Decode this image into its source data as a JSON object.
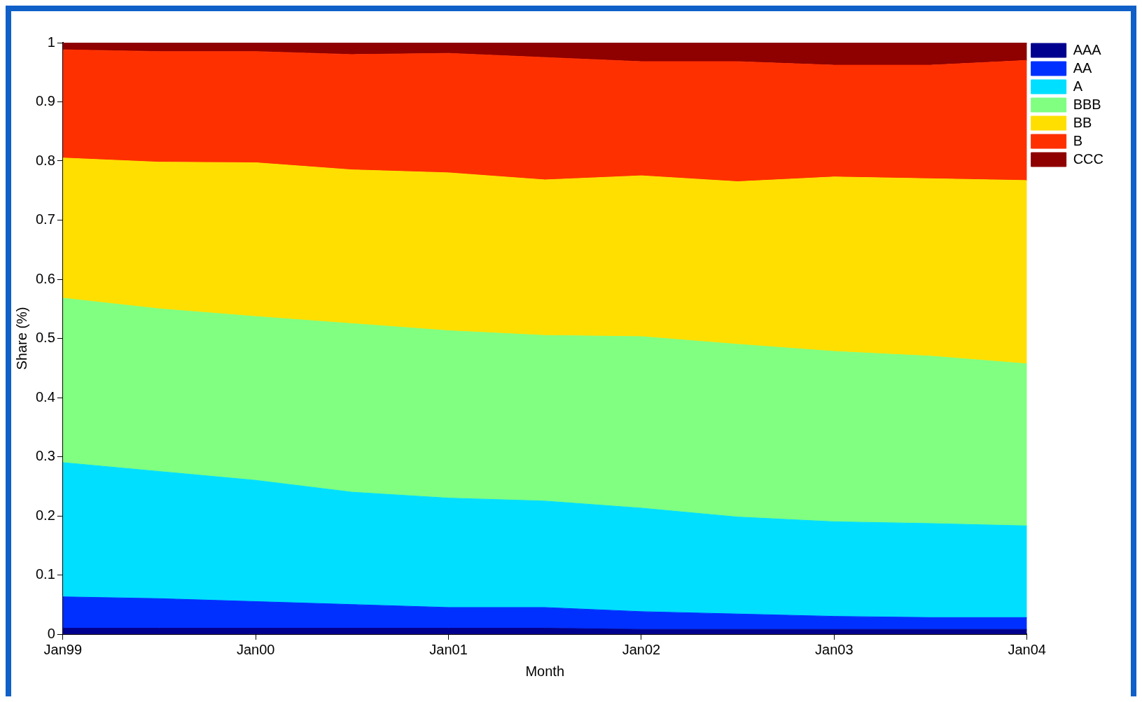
{
  "chart_data": {
    "type": "area",
    "stacked": true,
    "xlabel": "Month",
    "ylabel": "Share (%)",
    "x": [
      "1999-01",
      "1999-07",
      "2000-01",
      "2000-07",
      "2001-01",
      "2001-07",
      "2002-01",
      "2002-07",
      "2003-01",
      "2003-07",
      "2004-01"
    ],
    "xlim": [
      "1999-01",
      "2004-01"
    ],
    "xticks": [
      {
        "value": "1999-01",
        "label": "Jan99"
      },
      {
        "value": "2000-01",
        "label": "Jan00"
      },
      {
        "value": "2001-01",
        "label": "Jan01"
      },
      {
        "value": "2002-01",
        "label": "Jan02"
      },
      {
        "value": "2003-01",
        "label": "Jan03"
      },
      {
        "value": "2004-01",
        "label": "Jan04"
      }
    ],
    "ylim": [
      0,
      1
    ],
    "yticks": [
      0,
      0.1,
      0.2,
      0.3,
      0.4,
      0.5,
      0.6,
      0.7,
      0.8,
      0.9,
      1
    ],
    "grid": false,
    "legend": "top right",
    "series": [
      {
        "name": "AAA",
        "color": "#00008f",
        "values": [
          0.01,
          0.01,
          0.01,
          0.01,
          0.01,
          0.01,
          0.008,
          0.008,
          0.008,
          0.008,
          0.008
        ]
      },
      {
        "name": "AA",
        "color": "#0030ff",
        "values": [
          0.053,
          0.05,
          0.045,
          0.04,
          0.035,
          0.035,
          0.03,
          0.026,
          0.022,
          0.02,
          0.02
        ]
      },
      {
        "name": "A",
        "color": "#00dfff",
        "values": [
          0.227,
          0.215,
          0.205,
          0.19,
          0.185,
          0.18,
          0.175,
          0.164,
          0.16,
          0.159,
          0.155
        ]
      },
      {
        "name": "BBB",
        "color": "#80ff80",
        "values": [
          0.278,
          0.275,
          0.277,
          0.285,
          0.283,
          0.28,
          0.29,
          0.292,
          0.288,
          0.283,
          0.274
        ]
      },
      {
        "name": "BB",
        "color": "#ffdf00",
        "values": [
          0.237,
          0.248,
          0.26,
          0.26,
          0.267,
          0.263,
          0.272,
          0.275,
          0.295,
          0.3,
          0.31
        ]
      },
      {
        "name": "B",
        "color": "#ff3000",
        "values": [
          0.183,
          0.187,
          0.188,
          0.195,
          0.202,
          0.207,
          0.193,
          0.203,
          0.189,
          0.192,
          0.203
        ]
      },
      {
        "name": "CCC",
        "color": "#8f0000",
        "values": [
          0.012,
          0.015,
          0.015,
          0.02,
          0.018,
          0.025,
          0.032,
          0.032,
          0.038,
          0.038,
          0.03
        ]
      }
    ]
  }
}
